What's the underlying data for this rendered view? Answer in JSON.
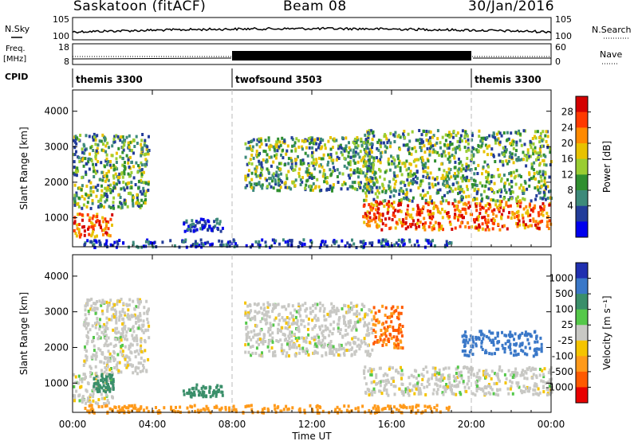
{
  "header": {
    "station": "Saskatoon (fitACF)",
    "beam": "Beam 08",
    "date": "30/Jan/2016"
  },
  "labels": {
    "nsky": "N.Sky",
    "nsearch": "N.Search",
    "freq_line1": "Freq.",
    "freq_line2": "[MHz]",
    "nave": "Nave",
    "cpid": "CPID"
  },
  "noise_axis": {
    "left_ticks": [
      "10^5",
      "10^0"
    ],
    "right_ticks": [
      "10^5",
      "10^0"
    ]
  },
  "freq_axis": {
    "left_ticks": [
      "18",
      "8"
    ],
    "right_ticks": [
      "60",
      "0"
    ]
  },
  "cpid_segments": [
    {
      "name": "themis 3300",
      "start_hr": 0,
      "end_hr": 8
    },
    {
      "name": "twofsound 3503",
      "start_hr": 8,
      "end_hr": 20
    },
    {
      "name": "themis 3300",
      "start_hr": 20,
      "end_hr": 24
    }
  ],
  "time_axis": {
    "label": "Time UT",
    "range_hr": [
      0,
      24
    ],
    "tick_labels": [
      "00:00",
      "04:00",
      "08:00",
      "12:00",
      "16:00",
      "20:00",
      "00:00"
    ]
  },
  "range_axis": {
    "label": "Slant Range [km]",
    "range_km": [
      180,
      4600
    ],
    "tick_values": [
      1000,
      2000,
      3000,
      4000
    ]
  },
  "chart_data": [
    {
      "type": "heatmap",
      "title": "Power",
      "colorbar_label": "Power [dB]",
      "colorbar_ticks": [
        "28",
        "24",
        "20",
        "16",
        "12",
        "8",
        "4"
      ],
      "colorbar_colors": [
        "#d40000",
        "#ff3a00",
        "#ff8a00",
        "#e8c200",
        "#9acd32",
        "#2f8f2f",
        "#3d8a7a",
        "#223c9a",
        "#0000ee"
      ],
      "xlabel": "Time UT",
      "ylabel": "Slant Range [km]",
      "scatter_regions": [
        {
          "desc": "early evening band",
          "t": [
            0.0,
            2.0
          ],
          "r": [
            500,
            1150
          ],
          "level": "high"
        },
        {
          "desc": "early rising arc",
          "t": [
            0.0,
            3.8
          ],
          "r": [
            1300,
            3400
          ],
          "level": "mid"
        },
        {
          "desc": "pre-midnight patches",
          "t": [
            5.5,
            7.5
          ],
          "r": [
            650,
            1000
          ],
          "level": "low"
        },
        {
          "desc": "post-08 descending arc",
          "t": [
            8.6,
            15.0
          ],
          "r": [
            1800,
            3300
          ],
          "level": "mid"
        },
        {
          "desc": "dawn band",
          "t": [
            14.5,
            24.0
          ],
          "r": [
            700,
            1500
          ],
          "level": "high"
        },
        {
          "desc": "dawn upper patches",
          "t": [
            14.5,
            24.0
          ],
          "r": [
            1500,
            3500
          ],
          "level": "mid"
        },
        {
          "desc": "ground scatter near range",
          "t": [
            0.5,
            19.0
          ],
          "r": [
            200,
            420
          ],
          "level": "low"
        }
      ]
    },
    {
      "type": "heatmap",
      "title": "Velocity",
      "colorbar_label": "Velocity [m s^-1]",
      "colorbar_ticks": [
        "1000",
        "500",
        "100",
        "25",
        "-25",
        "-100",
        "-500",
        "-1000"
      ],
      "colorbar_colors": [
        "#2030b0",
        "#3a78c8",
        "#3a8f6a",
        "#55c84a",
        "#c8c8c4",
        "#f5c400",
        "#ff9a1a",
        "#ff5a00",
        "#e80000"
      ],
      "xlabel": "Time UT",
      "ylabel": "Slant Range [km]",
      "scatter_regions": [
        {
          "desc": "early evening ground scatter",
          "t": [
            0.0,
            2.0
          ],
          "r": [
            450,
            1300
          ],
          "value": 0
        },
        {
          "desc": "early evening flow",
          "t": [
            1.0,
            2.0
          ],
          "r": [
            800,
            1300
          ],
          "value": 150
        },
        {
          "desc": "early rising arc",
          "t": [
            0.5,
            3.8
          ],
          "r": [
            1300,
            3400
          ],
          "value": 0
        },
        {
          "desc": "pre-midnight flow",
          "t": [
            5.5,
            7.5
          ],
          "r": [
            650,
            1000
          ],
          "value": 150
        },
        {
          "desc": "post-08 descending arc",
          "t": [
            8.6,
            15.0
          ],
          "r": [
            1800,
            3300
          ],
          "value": 0
        },
        {
          "desc": "dawn ground scatter",
          "t": [
            14.5,
            24.0
          ],
          "r": [
            700,
            1500
          ],
          "value": 0
        },
        {
          "desc": "dawn upper flow",
          "t": [
            19.5,
            23.5
          ],
          "r": [
            1800,
            2500
          ],
          "value": 400
        },
        {
          "desc": "near-range flow",
          "t": [
            0.5,
            19.0
          ],
          "r": [
            200,
            420
          ],
          "value": -150
        },
        {
          "desc": "16h arc cluster",
          "t": [
            15.0,
            16.5
          ],
          "r": [
            2000,
            3200
          ],
          "value": -300
        }
      ]
    }
  ]
}
